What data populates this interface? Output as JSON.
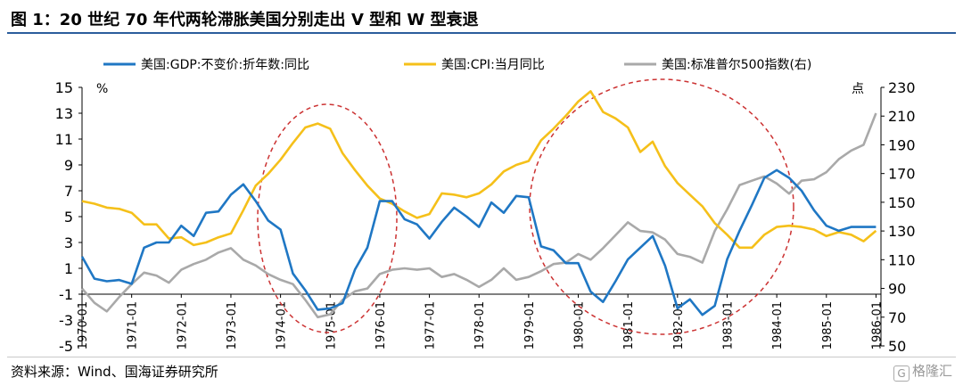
{
  "title": "图 1：20 世纪 70 年代两轮滞胀美国分别走出 V 型和 W 型衰退",
  "source": "资料来源：Wind、国海证券研究所",
  "watermark": {
    "icon": "格隆汇-logo-icon",
    "text": "格隆汇"
  },
  "chart_data": {
    "type": "line",
    "left_unit": "%",
    "right_unit": "点",
    "y_left": {
      "min": -5,
      "max": 15,
      "ticks": [
        -5,
        -3,
        -1,
        1,
        3,
        5,
        7,
        9,
        11,
        13,
        15
      ]
    },
    "y_right": {
      "min": 50,
      "max": 230,
      "ticks": [
        50,
        70,
        90,
        110,
        130,
        150,
        170,
        190,
        210,
        230
      ]
    },
    "x_range": [
      1970.0,
      1986.1
    ],
    "x_ticks": [
      "1970-01",
      "1971-01",
      "1972-01",
      "1973-01",
      "1974-01",
      "1975-01",
      "1976-01",
      "1977-01",
      "1978-01",
      "1979-01",
      "1980-01",
      "1981-01",
      "1982-01",
      "1983-01",
      "1984-01",
      "1985-01",
      "1986-01"
    ],
    "legend_position": "top",
    "series": [
      {
        "name": "美国:GDP:不变价:折年数:同比",
        "axis": "left",
        "color": "#1f77c4",
        "x": [
          1970.0,
          1970.25,
          1970.5,
          1970.75,
          1971.0,
          1971.25,
          1971.5,
          1971.75,
          1972.0,
          1972.25,
          1972.5,
          1972.75,
          1973.0,
          1973.25,
          1973.5,
          1973.75,
          1974.0,
          1974.25,
          1974.5,
          1974.75,
          1975.0,
          1975.25,
          1975.5,
          1975.75,
          1976.0,
          1976.25,
          1976.5,
          1976.75,
          1977.0,
          1977.25,
          1977.5,
          1977.75,
          1978.0,
          1978.25,
          1978.5,
          1978.75,
          1979.0,
          1979.25,
          1979.5,
          1979.75,
          1980.0,
          1980.25,
          1980.5,
          1980.75,
          1981.0,
          1981.25,
          1981.5,
          1981.75,
          1982.0,
          1982.25,
          1982.5,
          1982.75,
          1983.0,
          1983.25,
          1983.5,
          1983.75,
          1984.0,
          1984.25,
          1984.5,
          1984.75,
          1985.0,
          1985.25,
          1985.5,
          1985.75,
          1986.0
        ],
        "values": [
          1.9,
          0.2,
          0.0,
          0.1,
          -0.2,
          2.6,
          3.0,
          3.0,
          4.3,
          3.5,
          5.3,
          5.4,
          6.7,
          7.5,
          6.2,
          4.7,
          4.0,
          0.6,
          -0.7,
          -2.2,
          -2.1,
          -1.7,
          0.9,
          2.6,
          6.2,
          6.2,
          4.8,
          4.4,
          3.3,
          4.6,
          5.7,
          5.0,
          4.2,
          6.1,
          5.3,
          6.6,
          6.5,
          2.7,
          2.4,
          1.4,
          1.4,
          -0.8,
          -1.6,
          0.0,
          1.7,
          2.6,
          3.5,
          1.2,
          -2.1,
          -1.4,
          -2.6,
          -1.9,
          1.7,
          3.9,
          5.9,
          8.0,
          8.6,
          8.0,
          7.0,
          5.5,
          4.3,
          3.9,
          4.2,
          4.2,
          4.2
        ]
      },
      {
        "name": "美国:CPI:当月同比",
        "axis": "left",
        "color": "#f5c01a",
        "x": [
          1970.0,
          1970.25,
          1970.5,
          1970.75,
          1971.0,
          1971.25,
          1971.5,
          1971.75,
          1972.0,
          1972.25,
          1972.5,
          1972.75,
          1973.0,
          1973.25,
          1973.5,
          1973.75,
          1974.0,
          1974.25,
          1974.5,
          1974.75,
          1975.0,
          1975.25,
          1975.5,
          1975.75,
          1976.0,
          1976.25,
          1976.5,
          1976.75,
          1977.0,
          1977.25,
          1977.5,
          1977.75,
          1978.0,
          1978.25,
          1978.5,
          1978.75,
          1979.0,
          1979.25,
          1979.5,
          1979.75,
          1980.0,
          1980.25,
          1980.5,
          1980.75,
          1981.0,
          1981.25,
          1981.5,
          1981.75,
          1982.0,
          1982.25,
          1982.5,
          1982.75,
          1983.0,
          1983.25,
          1983.5,
          1983.75,
          1984.0,
          1984.25,
          1984.5,
          1984.75,
          1985.0,
          1985.25,
          1985.5,
          1985.75,
          1986.0
        ],
        "values": [
          6.2,
          6.0,
          5.7,
          5.6,
          5.3,
          4.4,
          4.4,
          3.3,
          3.4,
          2.8,
          3.0,
          3.4,
          3.7,
          5.5,
          7.4,
          8.3,
          9.4,
          10.7,
          11.9,
          12.2,
          11.8,
          9.9,
          8.6,
          7.4,
          6.4,
          6.0,
          5.4,
          4.9,
          5.2,
          6.8,
          6.7,
          6.5,
          6.8,
          7.5,
          8.5,
          9.0,
          9.3,
          10.9,
          11.8,
          12.8,
          13.9,
          14.7,
          13.1,
          12.6,
          11.9,
          10.0,
          10.8,
          8.9,
          7.6,
          6.7,
          5.8,
          4.5,
          3.6,
          2.6,
          2.6,
          3.6,
          4.2,
          4.3,
          4.2,
          4.0,
          3.5,
          3.8,
          3.6,
          3.1,
          3.9
        ]
      },
      {
        "name": "美国:标准普尔500指数(右)",
        "axis": "right",
        "color": "#a9a9a9",
        "x": [
          1970.0,
          1970.25,
          1970.5,
          1970.75,
          1971.0,
          1971.25,
          1971.5,
          1971.75,
          1972.0,
          1972.25,
          1972.5,
          1972.75,
          1973.0,
          1973.25,
          1973.5,
          1973.75,
          1974.0,
          1974.25,
          1974.5,
          1974.75,
          1975.0,
          1975.25,
          1975.5,
          1975.75,
          1976.0,
          1976.25,
          1976.5,
          1976.75,
          1977.0,
          1977.25,
          1977.5,
          1977.75,
          1978.0,
          1978.25,
          1978.5,
          1978.75,
          1979.0,
          1979.25,
          1979.5,
          1979.75,
          1980.0,
          1980.25,
          1980.5,
          1980.75,
          1981.0,
          1981.25,
          1981.5,
          1981.75,
          1982.0,
          1982.25,
          1982.5,
          1982.75,
          1983.0,
          1983.25,
          1983.5,
          1983.75,
          1984.0,
          1984.25,
          1984.5,
          1984.75,
          1985.0,
          1985.25,
          1985.5,
          1985.75,
          1986.0
        ],
        "values": [
          90,
          80,
          74,
          84,
          93,
          101,
          99,
          94,
          103,
          107,
          110,
          115,
          118,
          110,
          106,
          100,
          96,
          93,
          82,
          70,
          72,
          82,
          88,
          90,
          100,
          103,
          104,
          103,
          104,
          98,
          100,
          96,
          91,
          96,
          104,
          96,
          98,
          102,
          107,
          108,
          114,
          110,
          118,
          127,
          136,
          130,
          129,
          124,
          114,
          112,
          108,
          130,
          145,
          162,
          165,
          168,
          163,
          156,
          165,
          166,
          171,
          180,
          186,
          190,
          212
        ]
      }
    ]
  }
}
